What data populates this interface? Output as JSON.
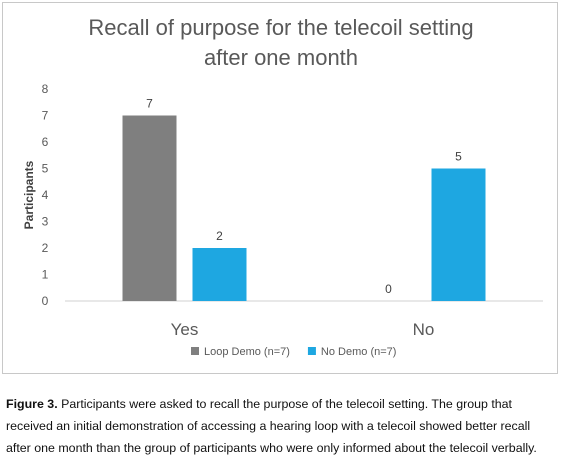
{
  "chart_data": {
    "type": "bar",
    "title_line1": "Recall of purpose for the telecoil setting",
    "title_line2": "after one month",
    "xlabel": "",
    "ylabel": "Participants",
    "ylim": [
      0,
      8
    ],
    "yticks": [
      "0",
      "1",
      "2",
      "3",
      "4",
      "5",
      "6",
      "7",
      "8"
    ],
    "categories": [
      "Yes",
      "No"
    ],
    "series": [
      {
        "name": "Loop Demo (n=7)",
        "values": [
          7,
          0
        ],
        "color": "#7f7f7f"
      },
      {
        "name": "No Demo (n=7)",
        "values": [
          2,
          5
        ],
        "color": "#1ea7e1"
      }
    ],
    "data_labels": [
      [
        "7",
        "0"
      ],
      [
        "2",
        "5"
      ]
    ],
    "legend_position": "bottom",
    "grid": false
  },
  "caption": {
    "label": "Figure 3.",
    "text": " Participants were asked to recall the purpose of the telecoil setting. The group that received an initial demonstration of accessing a hearing loop with a telecoil showed better recall after one month than the group of participants who were only informed about the telecoil verbally."
  }
}
